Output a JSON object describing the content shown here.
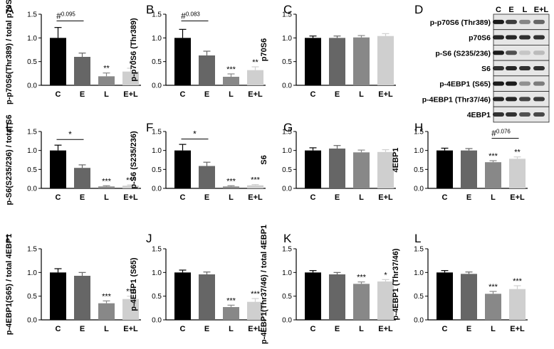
{
  "colors": {
    "C": "#000000",
    "E": "#666666",
    "L": "#888888",
    "E+L": "#cfcfcf",
    "axis": "#000000"
  },
  "chart_data": [
    {
      "panel": "A",
      "type": "bar",
      "ylabel": "p-p70S6(Thr389) / total p70S6",
      "categories": [
        "C",
        "E",
        "L",
        "E+L"
      ],
      "values": [
        1.0,
        0.6,
        0.19,
        0.29
      ],
      "errors": [
        0.22,
        0.08,
        0.07,
        0.07
      ],
      "labels": [
        "",
        "",
        "**",
        "*"
      ],
      "ylim": [
        0,
        1.5
      ],
      "yticks": [
        "0.0",
        "0.5",
        "1.0",
        "1.5"
      ],
      "bracket": {
        "from": 0,
        "to": 1,
        "level": 1.36,
        "symbol": "#",
        "value": "0.095"
      }
    },
    {
      "panel": "B",
      "type": "bar",
      "ylabel": "p-p70S6 (Thr389)",
      "categories": [
        "C",
        "E",
        "L",
        "E+L"
      ],
      "values": [
        1.0,
        0.63,
        0.18,
        0.32
      ],
      "errors": [
        0.18,
        0.09,
        0.06,
        0.07
      ],
      "labels": [
        "",
        "",
        "***",
        "**"
      ],
      "ylim": [
        0,
        1.5
      ],
      "yticks": [
        "0.0",
        "0.5",
        "1.0",
        "1.5"
      ],
      "bracket": {
        "from": 0,
        "to": 1,
        "level": 1.36,
        "symbol": "#",
        "value": "0.083"
      }
    },
    {
      "panel": "C",
      "type": "bar",
      "ylabel": "p70S6",
      "categories": [
        "C",
        "E",
        "L",
        "E+L"
      ],
      "values": [
        1.0,
        1.0,
        1.01,
        1.04
      ],
      "errors": [
        0.04,
        0.04,
        0.04,
        0.05
      ],
      "labels": [
        "",
        "",
        "",
        ""
      ],
      "ylim": [
        0,
        1.5
      ],
      "yticks": [
        "0.0",
        "0.5",
        "1.0",
        "1.5"
      ]
    },
    {
      "panel": "E",
      "type": "bar",
      "ylabel": "p-S6(S235/236) / total S6",
      "categories": [
        "C",
        "E",
        "L",
        "E+L"
      ],
      "values": [
        1.0,
        0.54,
        0.05,
        0.07
      ],
      "errors": [
        0.14,
        0.08,
        0.02,
        0.02
      ],
      "labels": [
        "",
        "",
        "***",
        "***"
      ],
      "ylim": [
        0,
        1.5
      ],
      "yticks": [
        "0.0",
        "0.5",
        "1.0",
        "1.5"
      ],
      "bracket": {
        "from": 0,
        "to": 1,
        "level": 1.29,
        "symbol": "*",
        "value": ""
      }
    },
    {
      "panel": "F",
      "type": "bar",
      "ylabel": "p-S6 (S235/236)",
      "categories": [
        "C",
        "E",
        "L",
        "E+L"
      ],
      "values": [
        1.0,
        0.59,
        0.05,
        0.08
      ],
      "errors": [
        0.16,
        0.1,
        0.02,
        0.02
      ],
      "labels": [
        "",
        "",
        "***",
        "***"
      ],
      "ylim": [
        0,
        1.5
      ],
      "yticks": [
        "0.0",
        "0.5",
        "1.0",
        "1.5"
      ],
      "bracket": {
        "from": 0,
        "to": 1,
        "level": 1.3,
        "symbol": "*",
        "value": ""
      }
    },
    {
      "panel": "G",
      "type": "bar",
      "ylabel": "S6",
      "categories": [
        "C",
        "E",
        "L",
        "E+L"
      ],
      "values": [
        1.0,
        1.05,
        0.95,
        0.96
      ],
      "errors": [
        0.07,
        0.08,
        0.06,
        0.06
      ],
      "labels": [
        "",
        "",
        "",
        ""
      ],
      "ylim": [
        0,
        1.5
      ],
      "yticks": [
        "0.0",
        "0.5",
        "1.0",
        "1.5"
      ]
    },
    {
      "panel": "H",
      "type": "bar",
      "ylabel": "4EBP1",
      "categories": [
        "C",
        "E",
        "L",
        "E+L"
      ],
      "values": [
        1.0,
        1.0,
        0.69,
        0.78
      ],
      "errors": [
        0.06,
        0.05,
        0.04,
        0.05
      ],
      "labels": [
        "",
        "",
        "***",
        "**"
      ],
      "ylim": [
        0,
        1.5
      ],
      "yticks": [
        "0.0",
        "0.5",
        "1.0",
        "1.5"
      ],
      "bracket": {
        "from": 2,
        "to": 3,
        "level": 1.32,
        "symbol": "#",
        "value": "0.076"
      }
    },
    {
      "panel": "I",
      "type": "bar",
      "ylabel": "p-4EBP1(S65) / total 4EBP1",
      "categories": [
        "C",
        "E",
        "L",
        "E+L"
      ],
      "values": [
        1.0,
        0.93,
        0.35,
        0.44
      ],
      "errors": [
        0.08,
        0.07,
        0.05,
        0.06
      ],
      "labels": [
        "",
        "",
        "***",
        "***"
      ],
      "ylim": [
        0,
        1.5
      ],
      "yticks": [
        "0.0",
        "0.5",
        "1.0",
        "1.5"
      ]
    },
    {
      "panel": "J",
      "type": "bar",
      "ylabel": "p-4EBP1 (S65)",
      "categories": [
        "C",
        "E",
        "L",
        "E+L"
      ],
      "values": [
        1.0,
        0.96,
        0.27,
        0.38
      ],
      "errors": [
        0.05,
        0.05,
        0.04,
        0.07
      ],
      "labels": [
        "",
        "",
        "***",
        "***"
      ],
      "ylim": [
        0,
        1.5
      ],
      "yticks": [
        "0.0",
        "0.5",
        "1.0",
        "1.5"
      ]
    },
    {
      "panel": "K",
      "type": "bar",
      "ylabel": "p-4EBP1(Thr37/46) / total 4EBP1",
      "categories": [
        "C",
        "E",
        "L",
        "E+L"
      ],
      "values": [
        1.0,
        0.96,
        0.76,
        0.81
      ],
      "errors": [
        0.04,
        0.04,
        0.04,
        0.04
      ],
      "labels": [
        "",
        "",
        "***",
        "*"
      ],
      "ylim": [
        0,
        1.5
      ],
      "yticks": [
        "0.0",
        "0.5",
        "1.0",
        "1.5"
      ]
    },
    {
      "panel": "L",
      "type": "bar",
      "ylabel": "p-4EBP1 (Thr37/46)",
      "categories": [
        "C",
        "E",
        "L",
        "E+L"
      ],
      "values": [
        1.0,
        0.97,
        0.55,
        0.65
      ],
      "errors": [
        0.04,
        0.04,
        0.05,
        0.07
      ],
      "labels": [
        "",
        "",
        "***",
        "***"
      ],
      "ylim": [
        0,
        1.5
      ],
      "yticks": [
        "0.0",
        "0.5",
        "1.0",
        "1.5"
      ]
    }
  ],
  "blot_panel": {
    "letter": "D",
    "lanes": [
      "C",
      "E",
      "L",
      "E+L"
    ],
    "rows": [
      {
        "label": "p-p70S6 (Thr389)",
        "intensity": [
          0.95,
          0.8,
          0.45,
          0.6
        ]
      },
      {
        "label": "p70S6",
        "intensity": [
          0.9,
          0.9,
          0.85,
          0.85
        ]
      },
      {
        "label": "p-S6 (S235/236)",
        "intensity": [
          0.95,
          0.7,
          0.15,
          0.2
        ]
      },
      {
        "label": "S6",
        "intensity": [
          0.85,
          0.9,
          0.85,
          0.85
        ]
      },
      {
        "label": "p-4EBP1 (S65)",
        "intensity": [
          0.95,
          0.95,
          0.4,
          0.5
        ]
      },
      {
        "label": "p-4EBP1 (Thr37/46)",
        "intensity": [
          0.9,
          0.9,
          0.75,
          0.8
        ]
      },
      {
        "label": "4EBP1",
        "intensity": [
          0.85,
          0.85,
          0.7,
          0.75
        ]
      }
    ]
  }
}
